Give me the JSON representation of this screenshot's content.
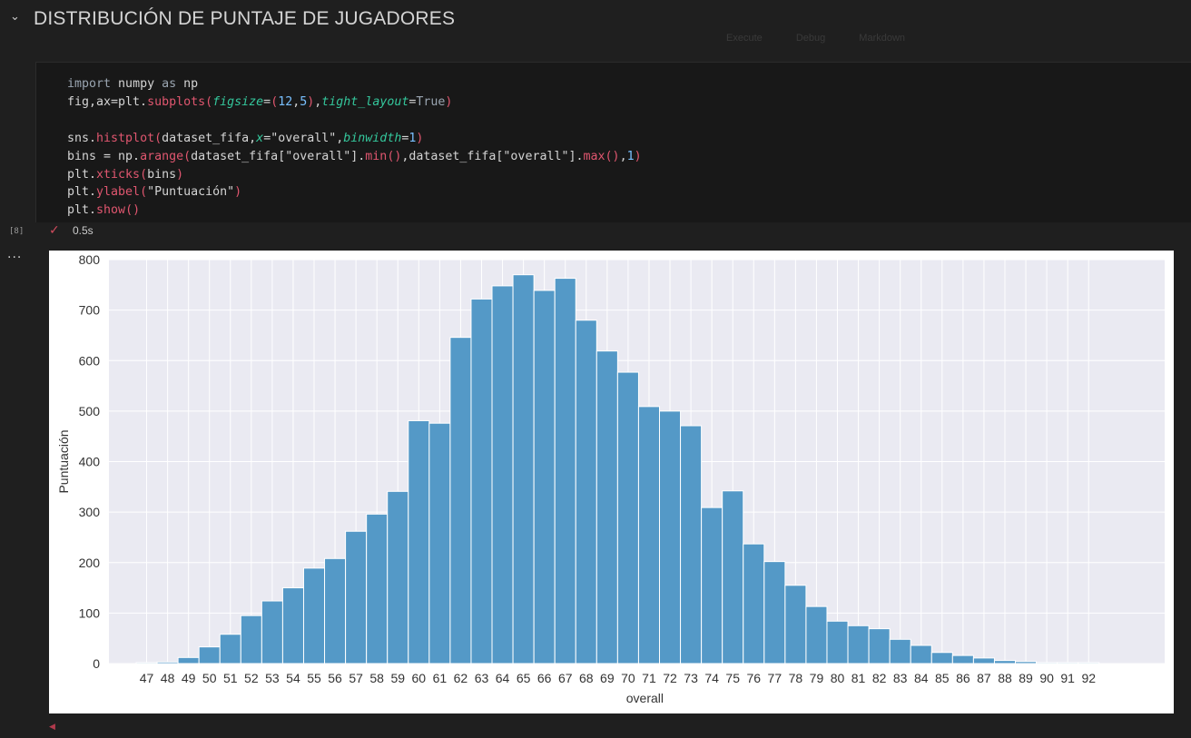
{
  "section": {
    "title": "DISTRIBUCIÓN DE PUNTAJE DE JUGADORES"
  },
  "toolbar": {
    "items": [
      "Execute",
      "Debug",
      "Markdown"
    ]
  },
  "code_lines": [
    "import numpy as np",
    "fig,ax=plt.subplots(figsize=(12,5),tight_layout=True)",
    "",
    "sns.histplot(dataset_fifa,x=\"overall\",binwidth=1)",
    "bins = np.arange(dataset_fifa[\"overall\"].min(),dataset_fifa[\"overall\"].max(),1)",
    "plt.xticks(bins)",
    "plt.ylabel(\"Puntuación\")",
    "plt.show()"
  ],
  "cell": {
    "execution_count": "[8]",
    "status_icon": "check-icon",
    "exec_time": "0.5s"
  },
  "output": {
    "more_icon": "ellipsis-icon"
  },
  "chart_data": {
    "type": "bar",
    "categories": [
      "47",
      "48",
      "49",
      "50",
      "51",
      "52",
      "53",
      "54",
      "55",
      "56",
      "57",
      "58",
      "59",
      "60",
      "61",
      "62",
      "63",
      "64",
      "65",
      "66",
      "67",
      "68",
      "69",
      "70",
      "71",
      "72",
      "73",
      "74",
      "75",
      "76",
      "77",
      "78",
      "79",
      "80",
      "81",
      "82",
      "83",
      "84",
      "85",
      "86",
      "87",
      "88",
      "89",
      "90",
      "91",
      "92"
    ],
    "values": [
      2,
      3,
      12,
      33,
      58,
      95,
      124,
      150,
      189,
      208,
      262,
      296,
      341,
      481,
      476,
      646,
      722,
      748,
      770,
      739,
      763,
      680,
      619,
      577,
      509,
      500,
      471,
      309,
      342,
      237,
      202,
      155,
      113,
      84,
      75,
      69,
      48,
      36,
      22,
      16,
      11,
      6,
      4,
      2,
      2,
      2
    ],
    "xlabel": "overall",
    "ylabel": "Puntuación",
    "ylim": [
      0,
      800
    ],
    "yticks": [
      0,
      100,
      200,
      300,
      400,
      500,
      600,
      700,
      800
    ],
    "grid": true,
    "colors": {
      "bar": "#5499c7",
      "bar_edge": "#ffffff",
      "plot_bg": "#eaeaf2",
      "grid": "#ffffff",
      "text": "#333333"
    }
  }
}
